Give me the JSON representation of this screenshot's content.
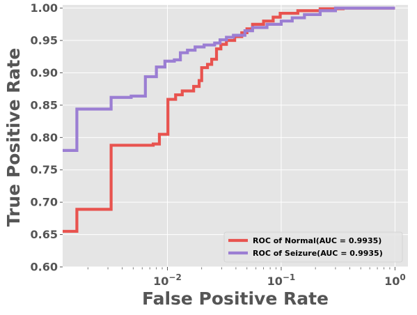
{
  "chart_data": {
    "type": "line",
    "title": "",
    "xlabel": "False Positive Rate",
    "ylabel": "True Positive Rate",
    "x_scale": "log",
    "xlim": [
      0.0012,
      1.3
    ],
    "ylim": [
      0.6,
      1.005
    ],
    "x_ticks": [
      {
        "value": 0.01,
        "label_base": "10",
        "label_exp": "−2"
      },
      {
        "value": 0.1,
        "label_base": "10",
        "label_exp": "−1"
      },
      {
        "value": 1,
        "label_base": "10",
        "label_exp": "0"
      }
    ],
    "y_ticks": [
      {
        "value": 0.6,
        "label": "0.60"
      },
      {
        "value": 0.65,
        "label": "0.65"
      },
      {
        "value": 0.7,
        "label": "0.70"
      },
      {
        "value": 0.75,
        "label": "0.75"
      },
      {
        "value": 0.8,
        "label": "0.80"
      },
      {
        "value": 0.85,
        "label": "0.85"
      },
      {
        "value": 0.9,
        "label": "0.90"
      },
      {
        "value": 0.95,
        "label": "0.95"
      },
      {
        "value": 1.0,
        "label": "1.00"
      }
    ],
    "grid": true,
    "legend_position": "bottom-right",
    "series": [
      {
        "name": "ROC of Normal(AUC = 0.9935)",
        "color": "#e8534f",
        "points": [
          [
            0.0012,
            0.655
          ],
          [
            0.0016,
            0.655
          ],
          [
            0.0016,
            0.689
          ],
          [
            0.0032,
            0.689
          ],
          [
            0.0032,
            0.788
          ],
          [
            0.0075,
            0.788
          ],
          [
            0.0075,
            0.79
          ],
          [
            0.0085,
            0.79
          ],
          [
            0.0085,
            0.805
          ],
          [
            0.0101,
            0.805
          ],
          [
            0.0101,
            0.859
          ],
          [
            0.0118,
            0.859
          ],
          [
            0.0118,
            0.866
          ],
          [
            0.0135,
            0.866
          ],
          [
            0.0135,
            0.872
          ],
          [
            0.017,
            0.872
          ],
          [
            0.017,
            0.879
          ],
          [
            0.019,
            0.879
          ],
          [
            0.019,
            0.888
          ],
          [
            0.02,
            0.888
          ],
          [
            0.02,
            0.908
          ],
          [
            0.0225,
            0.908
          ],
          [
            0.0225,
            0.913
          ],
          [
            0.0245,
            0.913
          ],
          [
            0.0245,
            0.921
          ],
          [
            0.027,
            0.921
          ],
          [
            0.027,
            0.937
          ],
          [
            0.0295,
            0.937
          ],
          [
            0.0295,
            0.944
          ],
          [
            0.033,
            0.944
          ],
          [
            0.033,
            0.95
          ],
          [
            0.039,
            0.95
          ],
          [
            0.039,
            0.956
          ],
          [
            0.045,
            0.956
          ],
          [
            0.045,
            0.962
          ],
          [
            0.05,
            0.962
          ],
          [
            0.05,
            0.968
          ],
          [
            0.056,
            0.968
          ],
          [
            0.056,
            0.975
          ],
          [
            0.07,
            0.975
          ],
          [
            0.07,
            0.98
          ],
          [
            0.085,
            0.98
          ],
          [
            0.085,
            0.986
          ],
          [
            0.098,
            0.986
          ],
          [
            0.098,
            0.992
          ],
          [
            0.14,
            0.992
          ],
          [
            0.14,
            0.996
          ],
          [
            0.22,
            0.996
          ],
          [
            0.22,
            0.999
          ],
          [
            0.35,
            0.999
          ],
          [
            0.35,
            1.0
          ],
          [
            1.0,
            1.0
          ]
        ]
      },
      {
        "name": "ROC of Seizure(AUC = 0.9935)",
        "color": "#9b7ed3",
        "points": [
          [
            0.0012,
            0.78
          ],
          [
            0.0016,
            0.78
          ],
          [
            0.0016,
            0.844
          ],
          [
            0.0032,
            0.844
          ],
          [
            0.0032,
            0.862
          ],
          [
            0.0048,
            0.862
          ],
          [
            0.0048,
            0.864
          ],
          [
            0.0064,
            0.864
          ],
          [
            0.0064,
            0.894
          ],
          [
            0.008,
            0.894
          ],
          [
            0.008,
            0.909
          ],
          [
            0.0095,
            0.909
          ],
          [
            0.0095,
            0.918
          ],
          [
            0.0115,
            0.918
          ],
          [
            0.0115,
            0.92
          ],
          [
            0.013,
            0.92
          ],
          [
            0.013,
            0.931
          ],
          [
            0.015,
            0.931
          ],
          [
            0.015,
            0.935
          ],
          [
            0.0175,
            0.935
          ],
          [
            0.0175,
            0.94
          ],
          [
            0.021,
            0.94
          ],
          [
            0.021,
            0.943
          ],
          [
            0.026,
            0.943
          ],
          [
            0.026,
            0.946
          ],
          [
            0.029,
            0.946
          ],
          [
            0.029,
            0.951
          ],
          [
            0.033,
            0.951
          ],
          [
            0.033,
            0.955
          ],
          [
            0.038,
            0.955
          ],
          [
            0.038,
            0.958
          ],
          [
            0.048,
            0.958
          ],
          [
            0.048,
            0.965
          ],
          [
            0.056,
            0.965
          ],
          [
            0.056,
            0.97
          ],
          [
            0.075,
            0.97
          ],
          [
            0.075,
            0.975
          ],
          [
            0.1,
            0.975
          ],
          [
            0.1,
            0.98
          ],
          [
            0.125,
            0.98
          ],
          [
            0.125,
            0.985
          ],
          [
            0.16,
            0.985
          ],
          [
            0.16,
            0.99
          ],
          [
            0.22,
            0.99
          ],
          [
            0.22,
            0.996
          ],
          [
            0.3,
            0.996
          ],
          [
            0.3,
            1.0
          ],
          [
            1.0,
            1.0
          ]
        ]
      }
    ]
  }
}
